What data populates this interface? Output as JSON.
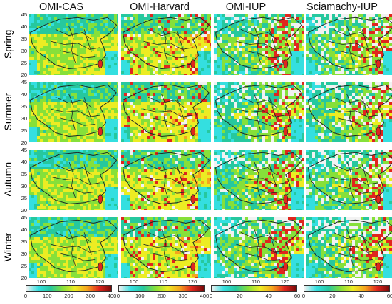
{
  "columns": [
    {
      "title": "OMI-CAS",
      "colorbar": {
        "ticks": [
          "0",
          "100",
          "200",
          "300",
          "400"
        ],
        "min": 0,
        "max": 400
      }
    },
    {
      "title": "OMI-Harvard",
      "colorbar": {
        "ticks": [
          "0",
          "100",
          "200",
          "300",
          "400"
        ],
        "min": 0,
        "max": 400
      }
    },
    {
      "title": "OMI-IUP",
      "colorbar": {
        "ticks": [
          "0",
          "20",
          "40",
          "60"
        ],
        "min": 0,
        "max": 60
      }
    },
    {
      "title": "Sciamachy-IUP",
      "colorbar": {
        "ticks": [
          "0",
          "20",
          "40",
          "60"
        ],
        "min": 0,
        "max": 60
      }
    }
  ],
  "rows": [
    "Spring",
    "Summer",
    "Autumn",
    "Winter"
  ],
  "axes": {
    "lat_ticks": [
      "45",
      "40",
      "35",
      "30",
      "25",
      "20"
    ],
    "lon_ticks": [
      "100",
      "110",
      "120"
    ]
  },
  "colors": {
    "colormap": [
      "#f2f2f2",
      "#34dfe0",
      "#26c89e",
      "#86e03a",
      "#ecec23",
      "#f5a51e",
      "#e0261d",
      "#7a0a0a"
    ],
    "border_line": "#1e2a24"
  }
}
